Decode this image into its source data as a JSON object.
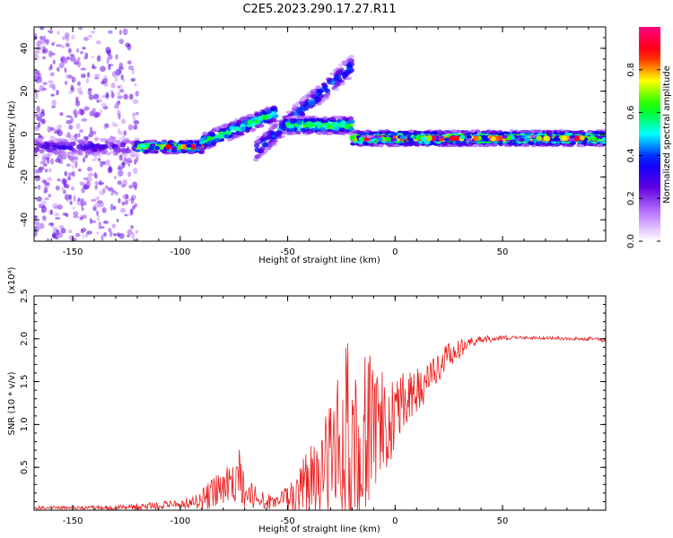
{
  "title": "C2E5.2023.290.17.27.R11",
  "colorbar": {
    "label": "Normalized spectral amplitude",
    "ticks": [
      "0.0",
      "0.2",
      "0.4",
      "0.6",
      "0.8"
    ],
    "tick_values": [
      0.0,
      0.2,
      0.4,
      0.6,
      0.8
    ],
    "range": [
      0,
      1
    ],
    "colors": [
      "#ffffff",
      "#c080ff",
      "#6000e0",
      "#0000ff",
      "#00ffff",
      "#00ff00",
      "#ffff00",
      "#ff0000",
      "#ff0080"
    ]
  },
  "chart_data": [
    {
      "type": "heatmap",
      "xlabel": "Height of straight line (km)",
      "ylabel": "Frequency (Hz)",
      "xlim": [
        -168,
        98
      ],
      "ylim": [
        -50,
        50
      ],
      "xticks": [
        -150,
        -100,
        -50,
        0,
        50
      ],
      "yticks": [
        -40,
        -20,
        0,
        20,
        40
      ],
      "xtick_labels": [
        "-150",
        "-100",
        "-50",
        "0",
        "50"
      ],
      "ytick_labels": [
        "-40",
        "-20",
        "0",
        "20",
        "40"
      ],
      "features": [
        {
          "x": [
            -168,
            -120
          ],
          "freq_center": -6,
          "amplitude": 0.35
        },
        {
          "x": [
            -120,
            -90
          ],
          "freq_center": -6,
          "amplitude": 0.85
        },
        {
          "x": [
            -90,
            -55
          ],
          "freq_start": -4,
          "freq_end": 10,
          "amplitude": 0.7
        },
        {
          "x": [
            -65,
            -20
          ],
          "freq_start": -8,
          "freq_end": 32,
          "amplitude": 0.5
        },
        {
          "x": [
            -50,
            -20
          ],
          "freq_center": 4,
          "amplitude": 0.75
        },
        {
          "x": [
            -20,
            98
          ],
          "freq_center": -2,
          "amplitude": 0.9
        }
      ]
    },
    {
      "type": "line",
      "xlabel": "Height of straight line (km)",
      "ylabel": "SNR (10 * v/v)",
      "y_multiplier": "(x10⁴)",
      "xlim": [
        -168,
        98
      ],
      "ylim": [
        0,
        2.5
      ],
      "xticks": [
        -150,
        -100,
        -50,
        0,
        50
      ],
      "yticks": [
        0.5,
        1.0,
        1.5,
        2.0,
        2.5
      ],
      "xtick_labels": [
        "-150",
        "-100",
        "-50",
        "0",
        "50"
      ],
      "ytick_labels": [
        "0.5",
        "1.0",
        "1.5",
        "2.0",
        "2.5"
      ],
      "series": [
        {
          "color": "#e82020",
          "envelope": {
            "x": [
              -168,
              -150,
              -130,
              -110,
              -100,
              -90,
              -85,
              -80,
              -75,
              -72,
              -70,
              -66,
              -60,
              -55,
              -50,
              -45,
              -40,
              -35,
              -30,
              -25,
              -22,
              -20,
              -18,
              -16,
              -12,
              -8,
              -5,
              0,
              5,
              10,
              15,
              20,
              25,
              30,
              35,
              40,
              50,
              60,
              70,
              80,
              90,
              98
            ],
            "mean": [
              0.03,
              0.03,
              0.03,
              0.05,
              0.07,
              0.12,
              0.2,
              0.25,
              0.3,
              0.35,
              0.25,
              0.15,
              0.1,
              0.08,
              0.12,
              0.2,
              0.3,
              0.4,
              0.55,
              0.7,
              0.75,
              0.8,
              0.7,
              0.85,
              0.95,
              0.95,
              1.0,
              1.1,
              1.2,
              1.35,
              1.5,
              1.65,
              1.8,
              1.88,
              1.95,
              1.99,
              2.01,
              2.01,
              2.01,
              2.0,
              2.0,
              1.98
            ],
            "peak": [
              0.05,
              0.05,
              0.06,
              0.1,
              0.12,
              0.25,
              0.4,
              0.5,
              0.6,
              0.75,
              0.5,
              0.3,
              0.2,
              0.15,
              0.3,
              0.5,
              0.75,
              0.95,
              1.3,
              1.65,
              2.3,
              1.8,
              2.5,
              2.0,
              1.85,
              1.6,
              1.7,
              1.6,
              1.6,
              1.65,
              1.75,
              1.85,
              1.95,
              2.0,
              2.02,
              2.04,
              2.04,
              2.03,
              2.03,
              2.02,
              2.03,
              2.0
            ]
          }
        }
      ]
    }
  ]
}
